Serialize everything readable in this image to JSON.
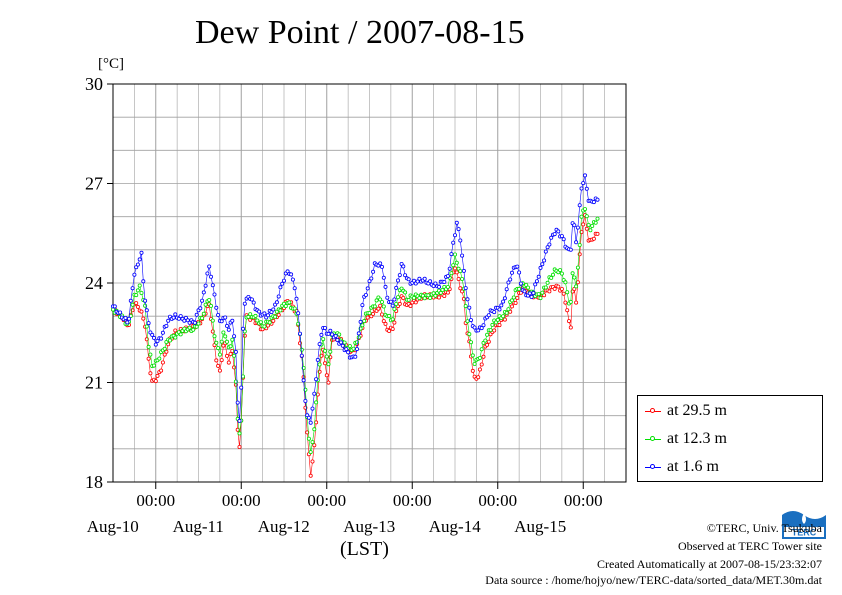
{
  "header": {
    "title": "Dew Point / 2007-08-15",
    "unit": "[°C]",
    "xunit": "(LST)"
  },
  "footer": {
    "copyright": "©TERC, Univ. Tsukuba",
    "observed": "Observed at TERC Tower site",
    "created": "Created Automatically at 2007-08-15/23:32:07",
    "source": "Data source : /home/hojyo/new/TERC-data/sorted_data/MET.30m.dat"
  },
  "colors": {
    "red": "#ff0000",
    "green": "#00e000",
    "blue": "#0000ff",
    "grid": "#a0a0a0"
  },
  "logo": {
    "name": "terc-logo-icon",
    "text": "TERC"
  },
  "chart_data": {
    "type": "line",
    "title": "Dew Point / 2007-08-15",
    "ylabel": "[°C]",
    "xlabel": "(LST)",
    "ylim": [
      18,
      30
    ],
    "yticks": [
      18,
      21,
      24,
      27,
      30
    ],
    "xlim": [
      0,
      6
    ],
    "x_unit": "days since 2007-08-09 12:00 LST",
    "xticks": [
      {
        "x": 0.5,
        "top": "00:00",
        "bottom": "Aug-10"
      },
      {
        "x": 1.5,
        "top": "00:00",
        "bottom": "Aug-11"
      },
      {
        "x": 2.5,
        "top": "00:00",
        "bottom": "Aug-12"
      },
      {
        "x": 3.5,
        "top": "00:00",
        "bottom": "Aug-13"
      },
      {
        "x": 4.5,
        "top": "00:00",
        "bottom": "Aug-14"
      },
      {
        "x": 5.5,
        "top": "00:00",
        "bottom": "Aug-15"
      }
    ],
    "grid": true,
    "legend_position": "bottom-right outside",
    "series": [
      {
        "name": "at 29.5 m",
        "color": "#ff0000",
        "keypoints": [
          [
            0,
            23.2
          ],
          [
            0.1,
            23.0
          ],
          [
            0.18,
            22.7
          ],
          [
            0.25,
            23.4
          ],
          [
            0.32,
            23.2
          ],
          [
            0.38,
            22.7
          ],
          [
            0.42,
            21.6
          ],
          [
            0.46,
            21.0
          ],
          [
            0.5,
            21.1
          ],
          [
            0.55,
            21.3
          ],
          [
            0.65,
            22.2
          ],
          [
            0.72,
            22.5
          ],
          [
            0.85,
            22.6
          ],
          [
            0.95,
            22.7
          ],
          [
            1.05,
            22.9
          ],
          [
            1.12,
            23.4
          ],
          [
            1.15,
            22.9
          ],
          [
            1.2,
            21.8
          ],
          [
            1.25,
            21.3
          ],
          [
            1.3,
            22.3
          ],
          [
            1.35,
            21.6
          ],
          [
            1.4,
            22.0
          ],
          [
            1.44,
            20.8
          ],
          [
            1.47,
            18.8
          ],
          [
            1.5,
            19.8
          ],
          [
            1.55,
            23.0
          ],
          [
            1.65,
            22.9
          ],
          [
            1.75,
            22.6
          ],
          [
            1.85,
            22.8
          ],
          [
            1.98,
            23.2
          ],
          [
            2.05,
            23.5
          ],
          [
            2.15,
            23.1
          ],
          [
            2.22,
            21.5
          ],
          [
            2.27,
            19.5
          ],
          [
            2.31,
            18.2
          ],
          [
            2.35,
            18.9
          ],
          [
            2.4,
            20.8
          ],
          [
            2.45,
            22.2
          ],
          [
            2.48,
            21.5
          ],
          [
            2.52,
            21.0
          ],
          [
            2.56,
            22.3
          ],
          [
            2.62,
            22.4
          ],
          [
            2.72,
            22.1
          ],
          [
            2.8,
            21.9
          ],
          [
            2.85,
            22.1
          ],
          [
            2.95,
            22.9
          ],
          [
            3.05,
            23.1
          ],
          [
            3.12,
            23.3
          ],
          [
            3.2,
            22.6
          ],
          [
            3.27,
            22.6
          ],
          [
            3.32,
            23.2
          ],
          [
            3.38,
            23.6
          ],
          [
            3.44,
            23.3
          ],
          [
            3.5,
            23.4
          ],
          [
            3.62,
            23.6
          ],
          [
            3.7,
            23.6
          ],
          [
            3.8,
            23.6
          ],
          [
            3.92,
            23.7
          ],
          [
            4.0,
            24.5
          ],
          [
            4.05,
            24.0
          ],
          [
            4.1,
            23.6
          ],
          [
            4.13,
            22.7
          ],
          [
            4.18,
            22.0
          ],
          [
            4.22,
            21.1
          ],
          [
            4.28,
            21.2
          ],
          [
            4.35,
            22.0
          ],
          [
            4.45,
            22.6
          ],
          [
            4.6,
            23.0
          ],
          [
            4.72,
            23.5
          ],
          [
            4.8,
            23.9
          ],
          [
            4.9,
            23.6
          ],
          [
            5.0,
            23.6
          ],
          [
            5.1,
            23.8
          ],
          [
            5.18,
            23.9
          ],
          [
            5.25,
            23.8
          ],
          [
            5.3,
            23.4
          ],
          [
            5.35,
            22.5
          ],
          [
            5.38,
            24.0
          ],
          [
            5.42,
            23.4
          ],
          [
            5.48,
            25.6
          ],
          [
            5.52,
            26.0
          ],
          [
            5.57,
            25.2
          ],
          [
            5.63,
            25.4
          ],
          [
            5.68,
            25.5
          ]
        ]
      },
      {
        "name": "at 12.3 m",
        "color": "#00e000",
        "keypoints": [
          [
            0,
            23.2
          ],
          [
            0.1,
            23.0
          ],
          [
            0.18,
            22.7
          ],
          [
            0.25,
            23.6
          ],
          [
            0.32,
            23.9
          ],
          [
            0.38,
            23.2
          ],
          [
            0.42,
            22.0
          ],
          [
            0.46,
            21.5
          ],
          [
            0.5,
            21.6
          ],
          [
            0.55,
            21.8
          ],
          [
            0.65,
            22.3
          ],
          [
            0.72,
            22.4
          ],
          [
            0.85,
            22.6
          ],
          [
            0.95,
            22.6
          ],
          [
            1.05,
            23.0
          ],
          [
            1.12,
            23.6
          ],
          [
            1.15,
            23.2
          ],
          [
            1.2,
            22.2
          ],
          [
            1.25,
            21.9
          ],
          [
            1.3,
            22.6
          ],
          [
            1.35,
            22.0
          ],
          [
            1.4,
            22.3
          ],
          [
            1.44,
            21.0
          ],
          [
            1.47,
            19.2
          ],
          [
            1.5,
            19.9
          ],
          [
            1.55,
            23.0
          ],
          [
            1.65,
            23.0
          ],
          [
            1.75,
            22.7
          ],
          [
            1.85,
            22.9
          ],
          [
            1.98,
            23.3
          ],
          [
            2.05,
            23.4
          ],
          [
            2.15,
            23.1
          ],
          [
            2.22,
            21.8
          ],
          [
            2.27,
            20.0
          ],
          [
            2.31,
            18.8
          ],
          [
            2.35,
            19.5
          ],
          [
            2.4,
            21.2
          ],
          [
            2.45,
            22.4
          ],
          [
            2.48,
            22.0
          ],
          [
            2.52,
            21.5
          ],
          [
            2.56,
            22.4
          ],
          [
            2.62,
            22.5
          ],
          [
            2.72,
            22.1
          ],
          [
            2.8,
            22.0
          ],
          [
            2.85,
            22.2
          ],
          [
            2.95,
            23.0
          ],
          [
            3.05,
            23.3
          ],
          [
            3.12,
            23.6
          ],
          [
            3.2,
            23.0
          ],
          [
            3.27,
            22.9
          ],
          [
            3.32,
            23.5
          ],
          [
            3.38,
            23.9
          ],
          [
            3.44,
            23.5
          ],
          [
            3.5,
            23.6
          ],
          [
            3.62,
            23.6
          ],
          [
            3.7,
            23.6
          ],
          [
            3.8,
            23.7
          ],
          [
            3.92,
            23.9
          ],
          [
            4.0,
            24.8
          ],
          [
            4.05,
            24.4
          ],
          [
            4.1,
            24.0
          ],
          [
            4.13,
            23.1
          ],
          [
            4.18,
            22.3
          ],
          [
            4.22,
            21.6
          ],
          [
            4.28,
            21.7
          ],
          [
            4.35,
            22.3
          ],
          [
            4.45,
            22.8
          ],
          [
            4.6,
            23.1
          ],
          [
            4.72,
            23.8
          ],
          [
            4.8,
            24.0
          ],
          [
            4.9,
            23.7
          ],
          [
            5.0,
            23.6
          ],
          [
            5.1,
            24.1
          ],
          [
            5.18,
            24.4
          ],
          [
            5.25,
            24.3
          ],
          [
            5.3,
            23.9
          ],
          [
            5.35,
            23.2
          ],
          [
            5.38,
            24.5
          ],
          [
            5.42,
            23.8
          ],
          [
            5.48,
            26.0
          ],
          [
            5.52,
            26.3
          ],
          [
            5.57,
            25.6
          ],
          [
            5.63,
            25.8
          ],
          [
            5.68,
            26.0
          ]
        ]
      },
      {
        "name": "at 1.6 m",
        "color": "#0000ff",
        "keypoints": [
          [
            0,
            23.3
          ],
          [
            0.1,
            23.0
          ],
          [
            0.18,
            22.8
          ],
          [
            0.25,
            24.3
          ],
          [
            0.3,
            24.6
          ],
          [
            0.33,
            25.0
          ],
          [
            0.36,
            23.8
          ],
          [
            0.42,
            22.7
          ],
          [
            0.46,
            22.4
          ],
          [
            0.5,
            22.2
          ],
          [
            0.55,
            22.3
          ],
          [
            0.65,
            22.9
          ],
          [
            0.72,
            23.0
          ],
          [
            0.85,
            22.9
          ],
          [
            0.95,
            22.8
          ],
          [
            1.05,
            23.5
          ],
          [
            1.12,
            24.5
          ],
          [
            1.15,
            24.2
          ],
          [
            1.2,
            23.4
          ],
          [
            1.25,
            22.8
          ],
          [
            1.3,
            23.0
          ],
          [
            1.35,
            22.6
          ],
          [
            1.4,
            22.9
          ],
          [
            1.44,
            21.8
          ],
          [
            1.47,
            19.5
          ],
          [
            1.5,
            20.8
          ],
          [
            1.53,
            23.4
          ],
          [
            1.6,
            23.6
          ],
          [
            1.7,
            23.1
          ],
          [
            1.8,
            23.0
          ],
          [
            1.9,
            23.3
          ],
          [
            1.98,
            24.0
          ],
          [
            2.05,
            24.4
          ],
          [
            2.12,
            24.0
          ],
          [
            2.18,
            22.8
          ],
          [
            2.23,
            21.0
          ],
          [
            2.27,
            20.0
          ],
          [
            2.31,
            19.8
          ],
          [
            2.35,
            20.5
          ],
          [
            2.4,
            21.8
          ],
          [
            2.45,
            22.7
          ],
          [
            2.5,
            22.5
          ],
          [
            2.55,
            22.5
          ],
          [
            2.62,
            22.3
          ],
          [
            2.72,
            22.0
          ],
          [
            2.8,
            21.7
          ],
          [
            2.85,
            21.9
          ],
          [
            2.92,
            23.4
          ],
          [
            3.0,
            24.0
          ],
          [
            3.07,
            24.6
          ],
          [
            3.15,
            24.5
          ],
          [
            3.2,
            23.6
          ],
          [
            3.27,
            23.3
          ],
          [
            3.32,
            23.9
          ],
          [
            3.38,
            24.6
          ],
          [
            3.44,
            24.1
          ],
          [
            3.5,
            24.0
          ],
          [
            3.62,
            24.1
          ],
          [
            3.7,
            24.0
          ],
          [
            3.8,
            23.9
          ],
          [
            3.92,
            24.2
          ],
          [
            3.98,
            25.2
          ],
          [
            4.02,
            25.8
          ],
          [
            4.06,
            25.4
          ],
          [
            4.1,
            24.4
          ],
          [
            4.14,
            23.6
          ],
          [
            4.18,
            23.0
          ],
          [
            4.22,
            22.6
          ],
          [
            4.3,
            22.6
          ],
          [
            4.4,
            23.1
          ],
          [
            4.55,
            23.3
          ],
          [
            4.65,
            24.2
          ],
          [
            4.72,
            24.6
          ],
          [
            4.8,
            23.7
          ],
          [
            4.9,
            23.6
          ],
          [
            5.0,
            24.4
          ],
          [
            5.1,
            25.2
          ],
          [
            5.18,
            25.6
          ],
          [
            5.25,
            25.4
          ],
          [
            5.3,
            25.1
          ],
          [
            5.35,
            24.9
          ],
          [
            5.38,
            26.0
          ],
          [
            5.42,
            25.2
          ],
          [
            5.48,
            26.9
          ],
          [
            5.52,
            27.2
          ],
          [
            5.57,
            26.4
          ],
          [
            5.63,
            26.5
          ],
          [
            5.68,
            26.5
          ]
        ]
      }
    ]
  },
  "legend": {
    "items": [
      {
        "label": "at 29.5 m",
        "color": "#ff0000"
      },
      {
        "label": "at 12.3 m",
        "color": "#00e000"
      },
      {
        "label": "at 1.6 m",
        "color": "#0000ff"
      }
    ]
  }
}
